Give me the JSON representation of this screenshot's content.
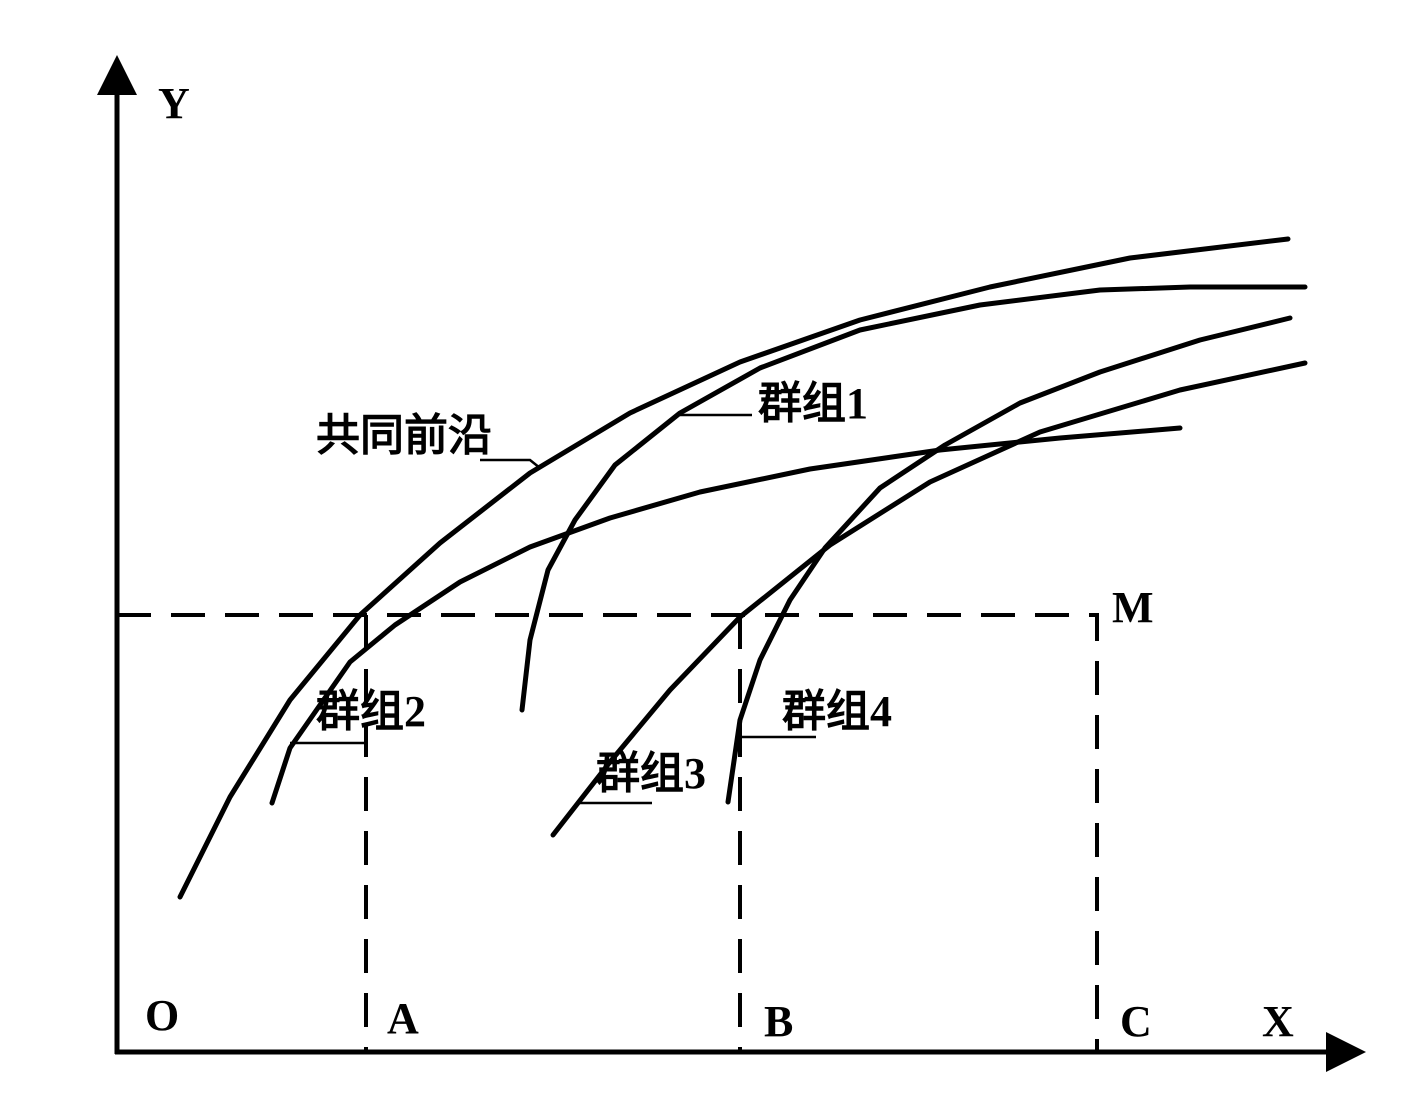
{
  "axes": {
    "y": "Y",
    "x": "X",
    "origin": "O"
  },
  "points": {
    "a": "A",
    "b": "B",
    "c": "C",
    "m": "M"
  },
  "curves": {
    "frontier": "共同前沿",
    "group1": "群组1",
    "group2": "群组2",
    "group3": "群组3",
    "group4": "群组4"
  }
}
